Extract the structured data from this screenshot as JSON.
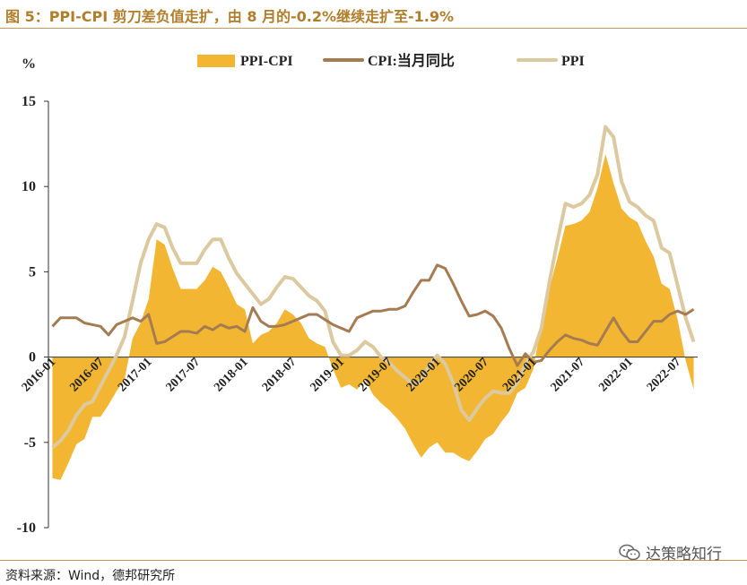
{
  "page": {
    "title": "图 5：PPI-CPI 剪刀差负值走扩，由 8 月的-0.2%继续走扩至-1.9%",
    "source": "资料来源：Wind，德邦研究所",
    "watermark": "达策略知行"
  },
  "colors": {
    "title": "#b07d2a",
    "rule": "#c49a55",
    "area": "#f2b632",
    "cpi": "#a57c52",
    "ppi": "#ddc9a0"
  },
  "chart_data": {
    "type": "area+line",
    "unit_label": "%",
    "ylim": [
      -10,
      15
    ],
    "yticks": [
      15,
      10,
      5,
      0,
      -5,
      -10
    ],
    "ytick_labels": [
      "15",
      "10",
      "5",
      "0",
      "-5",
      "-10"
    ],
    "xtick_labels": [
      "2016-01",
      "2016-07",
      "2017-01",
      "2017-07",
      "2018-01",
      "2018-07",
      "2019-01",
      "2019-07",
      "2020-01",
      "2020-07",
      "2021-01",
      "2021-07",
      "2022-01",
      "2022-07"
    ],
    "legend": [
      "PPI-CPI",
      "CPI:当月同比",
      "PPI"
    ],
    "months": [
      "2016-01",
      "2016-02",
      "2016-03",
      "2016-04",
      "2016-05",
      "2016-06",
      "2016-07",
      "2016-08",
      "2016-09",
      "2016-10",
      "2016-11",
      "2016-12",
      "2017-01",
      "2017-02",
      "2017-03",
      "2017-04",
      "2017-05",
      "2017-06",
      "2017-07",
      "2017-08",
      "2017-09",
      "2017-10",
      "2017-11",
      "2017-12",
      "2018-01",
      "2018-02",
      "2018-03",
      "2018-04",
      "2018-05",
      "2018-06",
      "2018-07",
      "2018-08",
      "2018-09",
      "2018-10",
      "2018-11",
      "2018-12",
      "2019-01",
      "2019-02",
      "2019-03",
      "2019-04",
      "2019-05",
      "2019-06",
      "2019-07",
      "2019-08",
      "2019-09",
      "2019-10",
      "2019-11",
      "2019-12",
      "2020-01",
      "2020-02",
      "2020-03",
      "2020-04",
      "2020-05",
      "2020-06",
      "2020-07",
      "2020-08",
      "2020-09",
      "2020-10",
      "2020-11",
      "2020-12",
      "2021-01",
      "2021-02",
      "2021-03",
      "2021-04",
      "2021-05",
      "2021-06",
      "2021-07",
      "2021-08",
      "2021-09",
      "2021-10",
      "2021-11",
      "2021-12",
      "2022-01",
      "2022-02",
      "2022-03",
      "2022-04",
      "2022-05",
      "2022-06",
      "2022-07",
      "2022-08",
      "2022-09"
    ],
    "series": [
      {
        "name": "PPI-CPI",
        "values": [
          -7.1,
          -7.2,
          -6.2,
          -5.1,
          -4.8,
          -3.5,
          -3.5,
          -2.8,
          -2.0,
          -1.3,
          1.1,
          2.0,
          3.4,
          6.9,
          6.6,
          5.2,
          4.0,
          4.0,
          4.0,
          4.5,
          5.3,
          5.0,
          4.1,
          3.1,
          2.8,
          0.8,
          1.3,
          1.5,
          2.0,
          2.8,
          2.5,
          2.0,
          1.1,
          0.8,
          0.6,
          -0.7,
          -1.8,
          -1.6,
          -1.9,
          -1.3,
          -2.2,
          -2.7,
          -3.1,
          -3.6,
          -4.2,
          -5.1,
          -5.9,
          -5.3,
          -5.0,
          -5.6,
          -5.6,
          -5.9,
          -6.1,
          -5.5,
          -4.8,
          -4.5,
          -3.8,
          -3.2,
          -2.1,
          -1.8,
          -0.7,
          2.0,
          4.0,
          5.8,
          7.7,
          7.8,
          8.0,
          8.5,
          9.9,
          11.9,
          10.2,
          8.7,
          8.2,
          7.9,
          6.8,
          5.9,
          4.3,
          4.0,
          2.2,
          -0.2,
          -1.9
        ]
      },
      {
        "name": "CPI:当月同比",
        "values": [
          1.8,
          2.3,
          2.3,
          2.3,
          2.0,
          1.9,
          1.8,
          1.3,
          1.9,
          2.1,
          2.3,
          2.1,
          2.5,
          0.8,
          0.9,
          1.2,
          1.5,
          1.5,
          1.4,
          1.8,
          1.6,
          1.9,
          1.7,
          1.8,
          1.5,
          2.9,
          2.1,
          1.8,
          1.8,
          1.9,
          2.1,
          2.3,
          2.5,
          2.5,
          2.2,
          1.9,
          1.7,
          1.5,
          2.3,
          2.5,
          2.7,
          2.7,
          2.8,
          2.8,
          3.0,
          3.8,
          4.5,
          4.5,
          5.4,
          5.2,
          4.3,
          3.3,
          2.4,
          2.5,
          2.7,
          2.4,
          1.7,
          0.5,
          -0.5,
          0.2,
          -0.3,
          -0.2,
          0.4,
          0.9,
          1.3,
          1.1,
          1.0,
          0.8,
          0.7,
          1.5,
          2.3,
          1.5,
          0.9,
          0.9,
          1.5,
          2.1,
          2.1,
          2.5,
          2.7,
          2.5,
          2.8
        ]
      },
      {
        "name": "PPI",
        "values": [
          -5.3,
          -4.9,
          -4.3,
          -3.4,
          -2.8,
          -2.6,
          -1.7,
          -0.8,
          0.1,
          1.2,
          3.3,
          5.5,
          6.9,
          7.8,
          7.6,
          6.4,
          5.5,
          5.5,
          5.5,
          6.3,
          6.9,
          6.9,
          5.8,
          4.9,
          4.3,
          3.7,
          3.1,
          3.4,
          4.1,
          4.7,
          4.6,
          4.1,
          3.6,
          3.3,
          2.7,
          0.9,
          0.1,
          0.1,
          0.4,
          0.9,
          0.6,
          0.0,
          -0.3,
          -0.8,
          -1.2,
          -1.6,
          -1.4,
          -0.5,
          0.1,
          -0.4,
          -1.5,
          -3.1,
          -3.7,
          -3.0,
          -2.4,
          -2.0,
          -2.1,
          -2.1,
          -1.5,
          -0.4,
          0.3,
          1.7,
          4.4,
          6.8,
          9.0,
          8.8,
          9.0,
          9.5,
          10.7,
          13.5,
          12.9,
          10.3,
          9.1,
          8.8,
          8.3,
          8.0,
          6.4,
          6.1,
          4.2,
          2.3,
          0.9
        ]
      }
    ]
  }
}
